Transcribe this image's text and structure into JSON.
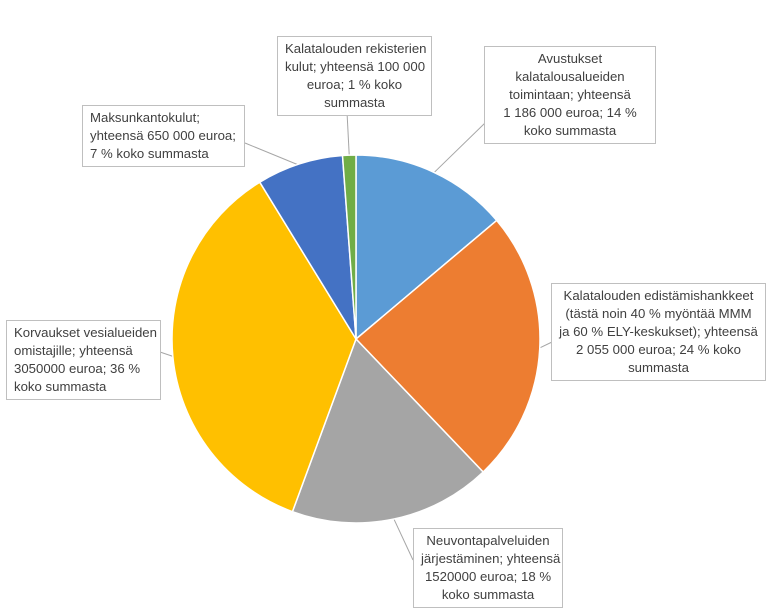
{
  "chart_data": {
    "type": "pie",
    "title": "",
    "start_angle_deg": 0,
    "direction": "clockwise",
    "slices": [
      {
        "label_lines": [
          "Avustukset",
          "kalatalousalueiden",
          "toimintaan; yhteensä",
          "1 186 000 euroa; 14 %",
          "koko summasta"
        ],
        "value": 1186000,
        "percent": 14,
        "color": "#5b9bd5"
      },
      {
        "label_lines": [
          "Kalatalouden edistämishankkeet",
          "(tästä noin 40 % myöntää MMM",
          "ja 60 % ELY-keskukset); yhteensä",
          "2 055 000 euroa; 24 % koko",
          "summasta"
        ],
        "value": 2055000,
        "percent": 24,
        "color": "#ed7d31"
      },
      {
        "label_lines": [
          "Neuvontapalveluiden",
          "järjestäminen; yhteensä",
          "1520000 euroa; 18 %",
          "koko summasta"
        ],
        "value": 1520000,
        "percent": 18,
        "color": "#a5a5a5"
      },
      {
        "label_lines": [
          "Korvaukset vesialueiden",
          "omistajille; yhteensä",
          "3050000 euroa; 36 %",
          "koko summasta"
        ],
        "value": 3050000,
        "percent": 36,
        "color": "#ffc000"
      },
      {
        "label_lines": [
          "Maksunkantokulut;",
          "yhteensä 650 000 euroa;",
          "7 % koko summasta"
        ],
        "value": 650000,
        "percent": 7,
        "color": "#4472c4"
      },
      {
        "label_lines": [
          "Kalatalouden rekisterien",
          "kulut; yhteensä 100 000",
          "euroa; 1 % koko",
          "summasta"
        ],
        "value": 100000,
        "percent": 1,
        "color": "#70ad47"
      }
    ]
  }
}
